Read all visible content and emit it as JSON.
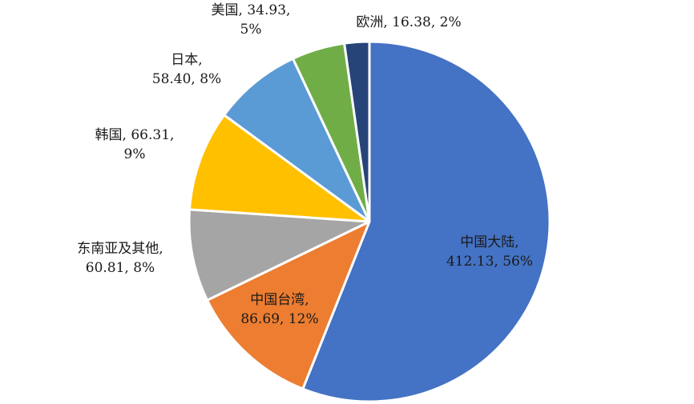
{
  "chart_data": {
    "type": "pie",
    "title": "",
    "start_angle_deg": 0,
    "direction": "clockwise",
    "legend": "none",
    "slices": [
      {
        "name": "中国大陆",
        "value": 412.13,
        "percent": "56%",
        "color": "#4472C4",
        "label_lines": [
          "中国大陆,",
          "412.13, 56%"
        ]
      },
      {
        "name": "中国台湾",
        "value": 86.69,
        "percent": "12%",
        "color": "#ED7D31",
        "label_lines": [
          "中国台湾,",
          "86.69, 12%"
        ]
      },
      {
        "name": "东南亚及其他",
        "value": 60.81,
        "percent": "8%",
        "color": "#A5A5A5",
        "label_lines": [
          "东南亚及其他,",
          "60.81, 8%"
        ]
      },
      {
        "name": "韩国",
        "value": 66.31,
        "percent": "9%",
        "color": "#FFC000",
        "label_lines": [
          "韩国, 66.31,",
          "9%"
        ]
      },
      {
        "name": "日本",
        "value": 58.4,
        "percent": "8%",
        "color": "#5B9BD5",
        "label_lines": [
          "日本,",
          "58.40, 8%"
        ]
      },
      {
        "name": "美国",
        "value": 34.93,
        "percent": "5%",
        "color": "#70AD47",
        "label_lines": [
          "美国, 34.93,",
          "5%"
        ]
      },
      {
        "name": "欧洲",
        "value": 16.38,
        "percent": "2%",
        "color": "#264478",
        "label_lines": [
          "欧洲, 16.38, 2%"
        ]
      }
    ]
  }
}
